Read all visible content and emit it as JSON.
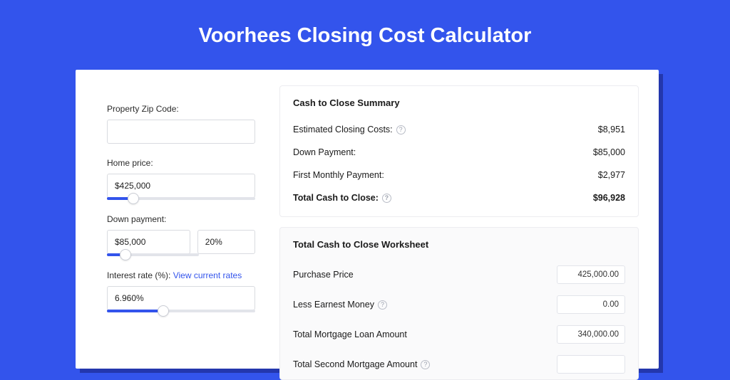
{
  "colors": {
    "page_bg": "#3354ec",
    "shadow": "#2337ad",
    "card_bg": "#ffffff",
    "border": "#d9dbe0",
    "slider_track": "#e2e4ea",
    "slider_fill": "#3354ec",
    "link": "#3354ec",
    "worksheet_bg": "#fafafb"
  },
  "title": "Voorhees Closing Cost Calculator",
  "form": {
    "zip": {
      "label": "Property Zip Code:",
      "value": ""
    },
    "home_price": {
      "label": "Home price:",
      "value": "$425,000",
      "slider_fill_pct": 18
    },
    "down_payment": {
      "label": "Down payment:",
      "amount": "$85,000",
      "percent": "20%",
      "slider_fill_pct": 20
    },
    "interest_rate": {
      "label": "Interest rate (%):",
      "link_text": "View current rates",
      "value": "6.960%",
      "slider_fill_pct": 38
    }
  },
  "summary": {
    "title": "Cash to Close Summary",
    "rows": [
      {
        "label": "Estimated Closing Costs:",
        "value": "$8,951",
        "help": true
      },
      {
        "label": "Down Payment:",
        "value": "$85,000",
        "help": false
      },
      {
        "label": "First Monthly Payment:",
        "value": "$2,977",
        "help": false
      }
    ],
    "total": {
      "label": "Total Cash to Close:",
      "value": "$96,928",
      "help": true
    }
  },
  "worksheet": {
    "title": "Total Cash to Close Worksheet",
    "rows": [
      {
        "label": "Purchase Price",
        "value": "425,000.00",
        "help": false
      },
      {
        "label": "Less Earnest Money",
        "value": "0.00",
        "help": true
      },
      {
        "label": "Total Mortgage Loan Amount",
        "value": "340,000.00",
        "help": false
      },
      {
        "label": "Total Second Mortgage Amount",
        "value": "",
        "help": true
      }
    ]
  }
}
